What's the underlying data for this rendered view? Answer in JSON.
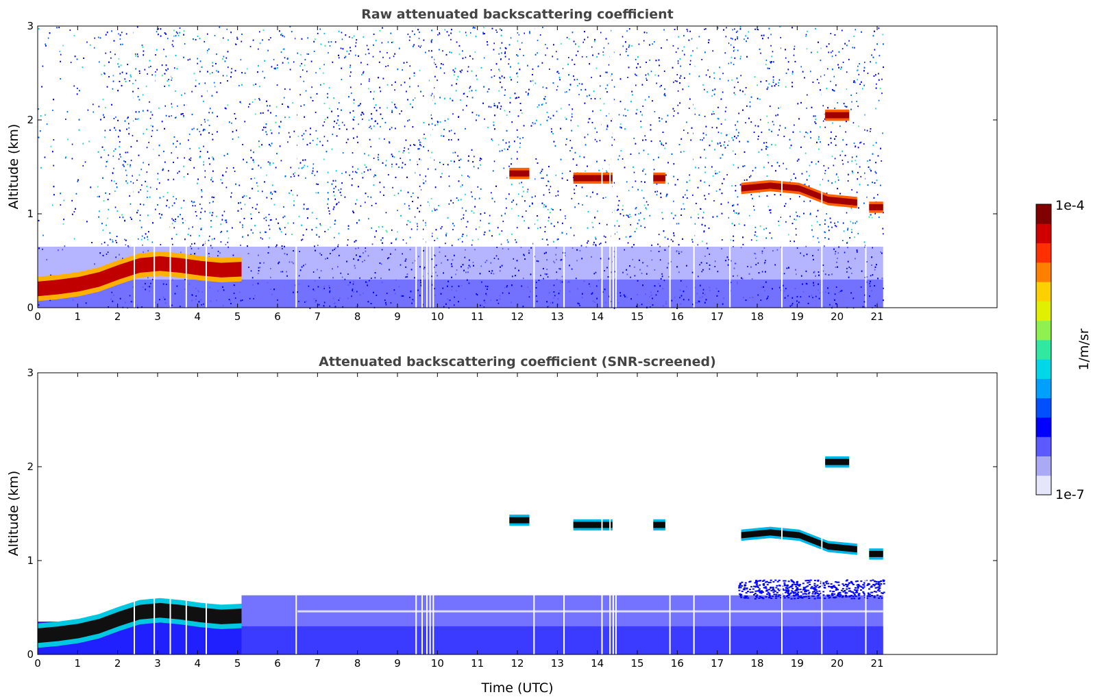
{
  "chart_data": [
    {
      "type": "heatmap",
      "title": "Raw attenuated backscattering coefficient",
      "xlabel": "",
      "ylabel": "Altitude (km)",
      "xlim": [
        0,
        24
      ],
      "ylim": [
        0,
        3
      ],
      "x_ticks": [
        0,
        1,
        2,
        3,
        4,
        5,
        6,
        7,
        8,
        9,
        10,
        11,
        12,
        13,
        14,
        15,
        16,
        17,
        18,
        19,
        20,
        21
      ],
      "y_ticks": [
        0,
        1,
        2,
        3
      ],
      "data_extent_hours": [
        0,
        21.15
      ],
      "features": [
        {
          "kind": "boundary-layer",
          "time_start": 0,
          "time_end": 5.1,
          "altitude_km": [
            0.2,
            0.22,
            0.25,
            0.3,
            0.38,
            0.45,
            0.47,
            0.45,
            0.42,
            0.4,
            0.41
          ],
          "thickness_km": 0.13
        },
        {
          "kind": "cloud",
          "time": [
            11.8,
            12.3
          ],
          "altitude_km": 1.43
        },
        {
          "kind": "cloud",
          "time": [
            13.4,
            14.4
          ],
          "altitude_km": 1.38
        },
        {
          "kind": "cloud",
          "time": [
            15.4,
            15.7
          ],
          "altitude_km": 1.38
        },
        {
          "kind": "cloud",
          "time": [
            17.6,
            20.5
          ],
          "altitude_km": [
            1.27,
            1.3,
            1.27,
            1.15,
            1.12
          ]
        },
        {
          "kind": "cloud",
          "time": [
            20.8,
            21.15
          ],
          "altitude_km": 1.07
        },
        {
          "kind": "cloud",
          "time": [
            19.7,
            20.3
          ],
          "altitude_km": 2.05
        }
      ]
    },
    {
      "type": "heatmap",
      "title": "Attenuated backscattering coefficient (SNR-screened)",
      "xlabel": "Time (UTC)",
      "ylabel": "Altitude (km)",
      "xlim": [
        0,
        24
      ],
      "ylim": [
        0,
        3
      ],
      "x_ticks": [
        0,
        1,
        2,
        3,
        4,
        5,
        6,
        7,
        8,
        9,
        10,
        11,
        12,
        13,
        14,
        15,
        16,
        17,
        18,
        19,
        20,
        21
      ],
      "y_ticks": [
        0,
        1,
        2,
        3
      ],
      "data_extent_hours": [
        0,
        21.15
      ],
      "features": [
        {
          "kind": "boundary-layer",
          "time_start": 0,
          "time_end": 5.1,
          "altitude_km": [
            0.2,
            0.22,
            0.25,
            0.3,
            0.38,
            0.45,
            0.47,
            0.45,
            0.42,
            0.4,
            0.41
          ],
          "thickness_km": 0.13
        },
        {
          "kind": "cloud",
          "time": [
            11.8,
            12.3
          ],
          "altitude_km": 1.43
        },
        {
          "kind": "cloud",
          "time": [
            13.4,
            14.4
          ],
          "altitude_km": 1.38
        },
        {
          "kind": "cloud",
          "time": [
            15.4,
            15.7
          ],
          "altitude_km": 1.38
        },
        {
          "kind": "cloud",
          "time": [
            17.6,
            20.5
          ],
          "altitude_km": [
            1.27,
            1.3,
            1.27,
            1.15,
            1.12
          ]
        },
        {
          "kind": "cloud",
          "time": [
            20.8,
            21.15
          ],
          "altitude_km": 1.07
        },
        {
          "kind": "cloud",
          "time": [
            19.7,
            20.3
          ],
          "altitude_km": 2.05
        }
      ]
    }
  ],
  "colorbar": {
    "label": "1/m/sr",
    "max_label": "1e-4",
    "min_label": "1e-7",
    "colors": [
      "#e6e6fa",
      "#a9a9f5",
      "#5a5aff",
      "#0000ff",
      "#0050ff",
      "#00a0ff",
      "#00d8e8",
      "#30e8a0",
      "#90f050",
      "#e0f000",
      "#ffd000",
      "#ff8000",
      "#ff3000",
      "#d00000",
      "#800000"
    ]
  }
}
